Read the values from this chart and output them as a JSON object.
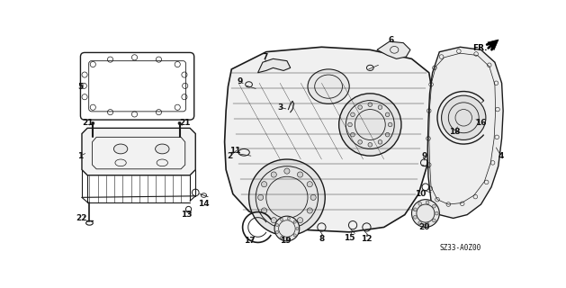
{
  "background_color": "#ffffff",
  "diagram_code": "SZ33-A0Z00",
  "line_color": "#1a1a1a",
  "text_color": "#111111",
  "font_size_label": 6.5,
  "font_size_code": 5.5
}
